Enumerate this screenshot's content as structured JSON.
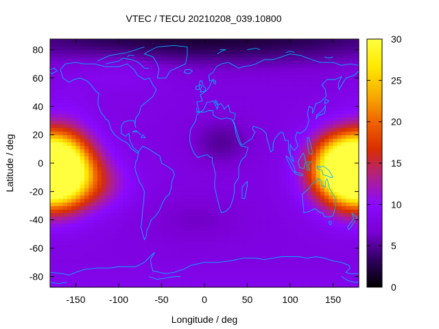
{
  "chart_data": {
    "type": "heatmap",
    "title": "VTEC / TECU 20210208_039.10800",
    "xlabel": "Longitude / deg",
    "ylabel": "Latitude / deg",
    "xlim": [
      -180,
      180
    ],
    "ylim": [
      -87.5,
      87.5
    ],
    "x_ticks": [
      -150,
      -100,
      -50,
      0,
      50,
      100,
      150
    ],
    "y_ticks": [
      -80,
      -60,
      -40,
      -20,
      0,
      20,
      40,
      60,
      80
    ],
    "colorbar": {
      "range": [
        0,
        30
      ],
      "ticks": [
        0,
        5,
        10,
        15,
        20,
        25,
        30
      ],
      "palette": [
        "#000000",
        "#300060",
        "#7a00d4",
        "#8a0aff",
        "#b0208a",
        "#d92e00",
        "#f06400",
        "#f8b000",
        "#ffe800",
        "#ffff40"
      ]
    },
    "coastline_color": "#00b4ff",
    "features": [
      {
        "description": "peak",
        "lon": -170,
        "lat": -5,
        "value": 30
      },
      {
        "description": "peak",
        "lon": 175,
        "lat": -5,
        "value": 29
      },
      {
        "description": "peak",
        "lon": 150,
        "lat": -3,
        "value": 27
      },
      {
        "description": "background_low_lat",
        "value": 8
      },
      {
        "description": "polar_low",
        "lat": 85,
        "value": 3
      }
    ],
    "grid": false,
    "legend": "colorbar-right"
  }
}
